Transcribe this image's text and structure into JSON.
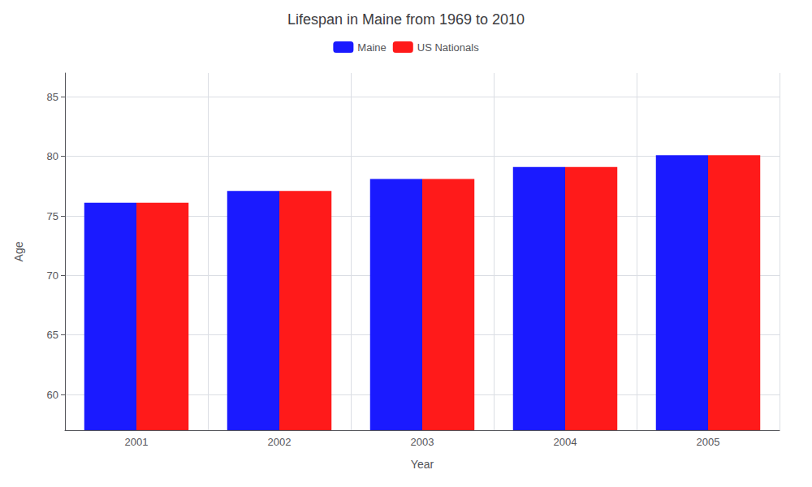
{
  "chart_data": {
    "type": "bar",
    "title": "Lifespan in Maine from 1969 to 2010",
    "xlabel": "Year",
    "ylabel": "Age",
    "categories": [
      "2001",
      "2002",
      "2003",
      "2004",
      "2005"
    ],
    "series": [
      {
        "name": "Maine",
        "color": "#1a1aff",
        "values": [
          76.1,
          77.1,
          78.1,
          79.1,
          80.1
        ]
      },
      {
        "name": "US Nationals",
        "color": "#ff1a1a",
        "values": [
          76.1,
          77.1,
          78.1,
          79.1,
          80.1
        ]
      }
    ],
    "ylim": [
      57,
      87
    ],
    "yticks": [
      60,
      65,
      70,
      75,
      80,
      85
    ],
    "grid": true,
    "legend": "top"
  }
}
